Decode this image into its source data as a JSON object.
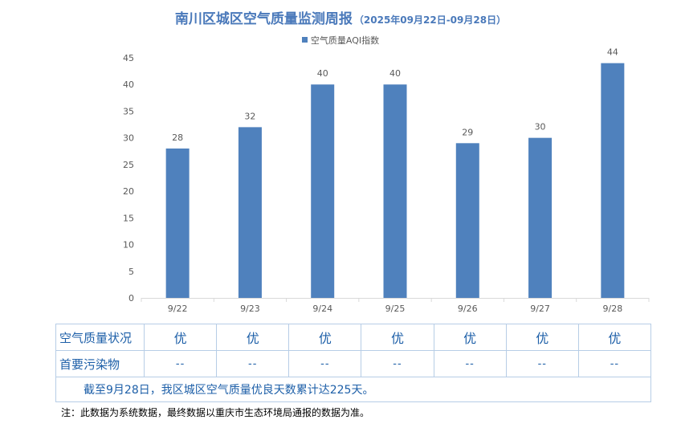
{
  "title": {
    "main": "南川区城区空气质量监测周报",
    "period": "（2025年09月22日-09月28日）"
  },
  "chart_data": {
    "type": "bar",
    "categories": [
      "9/22",
      "9/23",
      "9/24",
      "9/25",
      "9/26",
      "9/27",
      "9/28"
    ],
    "series": [
      {
        "name": "空气质量AQI指数",
        "values": [
          28,
          32,
          40,
          40,
          29,
          30,
          44
        ]
      }
    ],
    "y_ticks": [
      0,
      5,
      10,
      15,
      20,
      25,
      30,
      35,
      40,
      45
    ],
    "ylim": [
      0,
      45
    ],
    "grid": false,
    "legend_position": "top-center",
    "bar_color": "#4f81bd",
    "axis_text_color": "#595959"
  },
  "table": {
    "rows": [
      {
        "label": "空气质量状况",
        "values": [
          "优",
          "优",
          "优",
          "优",
          "优",
          "优",
          "优"
        ]
      },
      {
        "label": "首要污染物",
        "values": [
          "--",
          "--",
          "--",
          "--",
          "--",
          "--",
          "--"
        ]
      }
    ],
    "summary": "截至9月28日，我区城区空气质量优良天数累计达225天。"
  },
  "note": "注：此数据为系统数据，最终数据以重庆市生态环境局通报的数据为准。",
  "colors": {
    "title": "#4a79ba",
    "table_text": "#1d5fa8",
    "table_border": "#b7cde6"
  }
}
